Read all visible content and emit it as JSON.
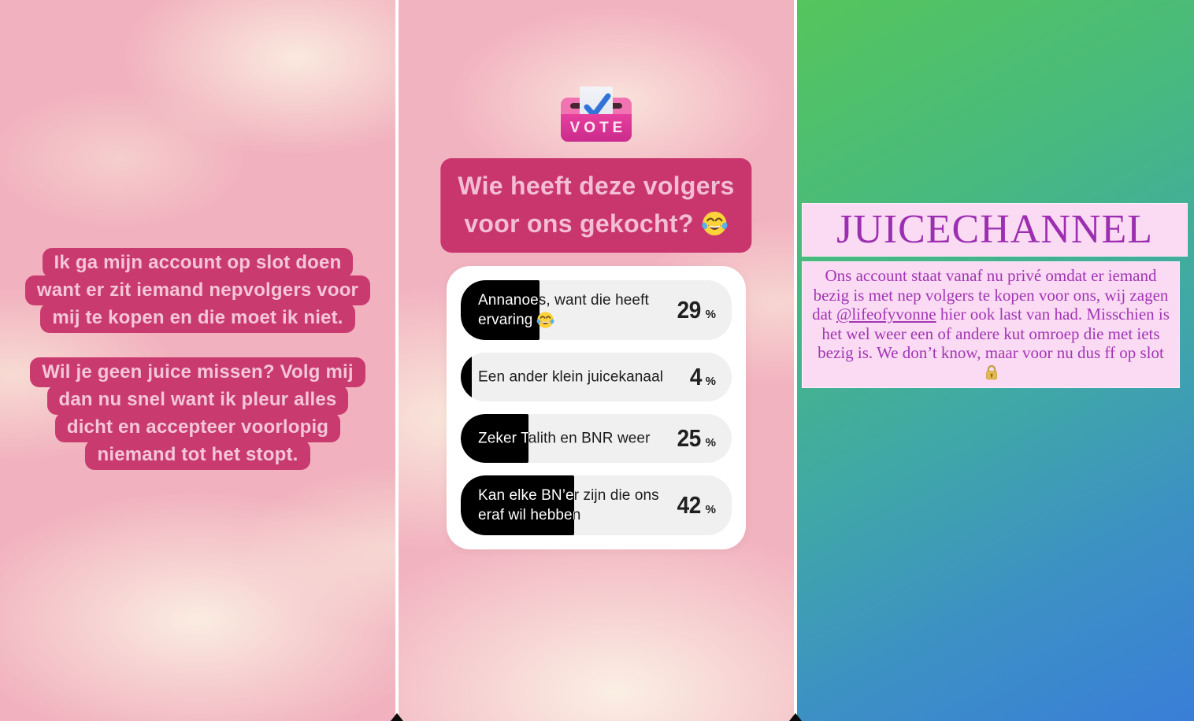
{
  "stories": {
    "left": {
      "bubble1_lines": [
        "Ik ga mijn account op slot doen",
        "want er zit iemand nepvolgers voor",
        "mij te kopen en die moet ik niet."
      ],
      "bubble2_lines": [
        "Wil je geen juice missen? Volg mij",
        "dan nu snel want ik pleur alles",
        "dicht en accepteer voorlopig",
        "niemand tot het stopt."
      ]
    },
    "middle": {
      "vote_sticker_label": "VOTE",
      "question_lines": [
        "Wie heeft deze volgers",
        "voor ons gekocht?"
      ],
      "question_emoji": "face-with-tears-of-joy",
      "poll": {
        "percent_sign": "%",
        "options": [
          {
            "label": "Annanoes, want die heeft ervaring",
            "emoji": "face-with-tears-of-joy",
            "percent": 29
          },
          {
            "label": "Een ander klein juicekanaal",
            "percent": 4
          },
          {
            "label": "Zeker Talith en BNR weer",
            "percent": 25
          },
          {
            "label": "Kan elke BN’er zijn die ons eraf wil hebben",
            "percent": 42
          }
        ]
      }
    },
    "right": {
      "title": "JUICECHANNEL",
      "body_before": "Ons account staat vanaf nu privé omdat er iemand bezig is met nep volgers te kopen voor ons, wij zagen dat ",
      "mention": "@lifeofyvonne",
      "body_after": " hier ook last van had. Misschien is het wel weer een of andere kut omroep die met iets bezig is. We don’t know, maar voor nu dus ff op slot",
      "end_emoji": "locked-padlock"
    }
  },
  "icons": {
    "laughing_emoji": "face-with-tears-of-joy",
    "lock_emoji": "locked-padlock",
    "ballot_check": "blue-checkmark",
    "vote_ballot_box": "ballot-box-sticker"
  },
  "colors": {
    "bubble_pink": "#c93a6e",
    "bubble_text_pink": "#f4c6d7",
    "sky_pink_base": "#f1b1be",
    "cloud_cream": "#fbeee2",
    "poll_bar_gray": "#f0f0f1",
    "poll_fill_black": "#000000",
    "vote_sticker_magenta": "#e73f9e",
    "right_gradient_green": "#55c55c",
    "right_gradient_blue": "#3a7ed8",
    "right_box_pink": "#fbdaf3",
    "right_text_purple": "#9c2fb1"
  }
}
